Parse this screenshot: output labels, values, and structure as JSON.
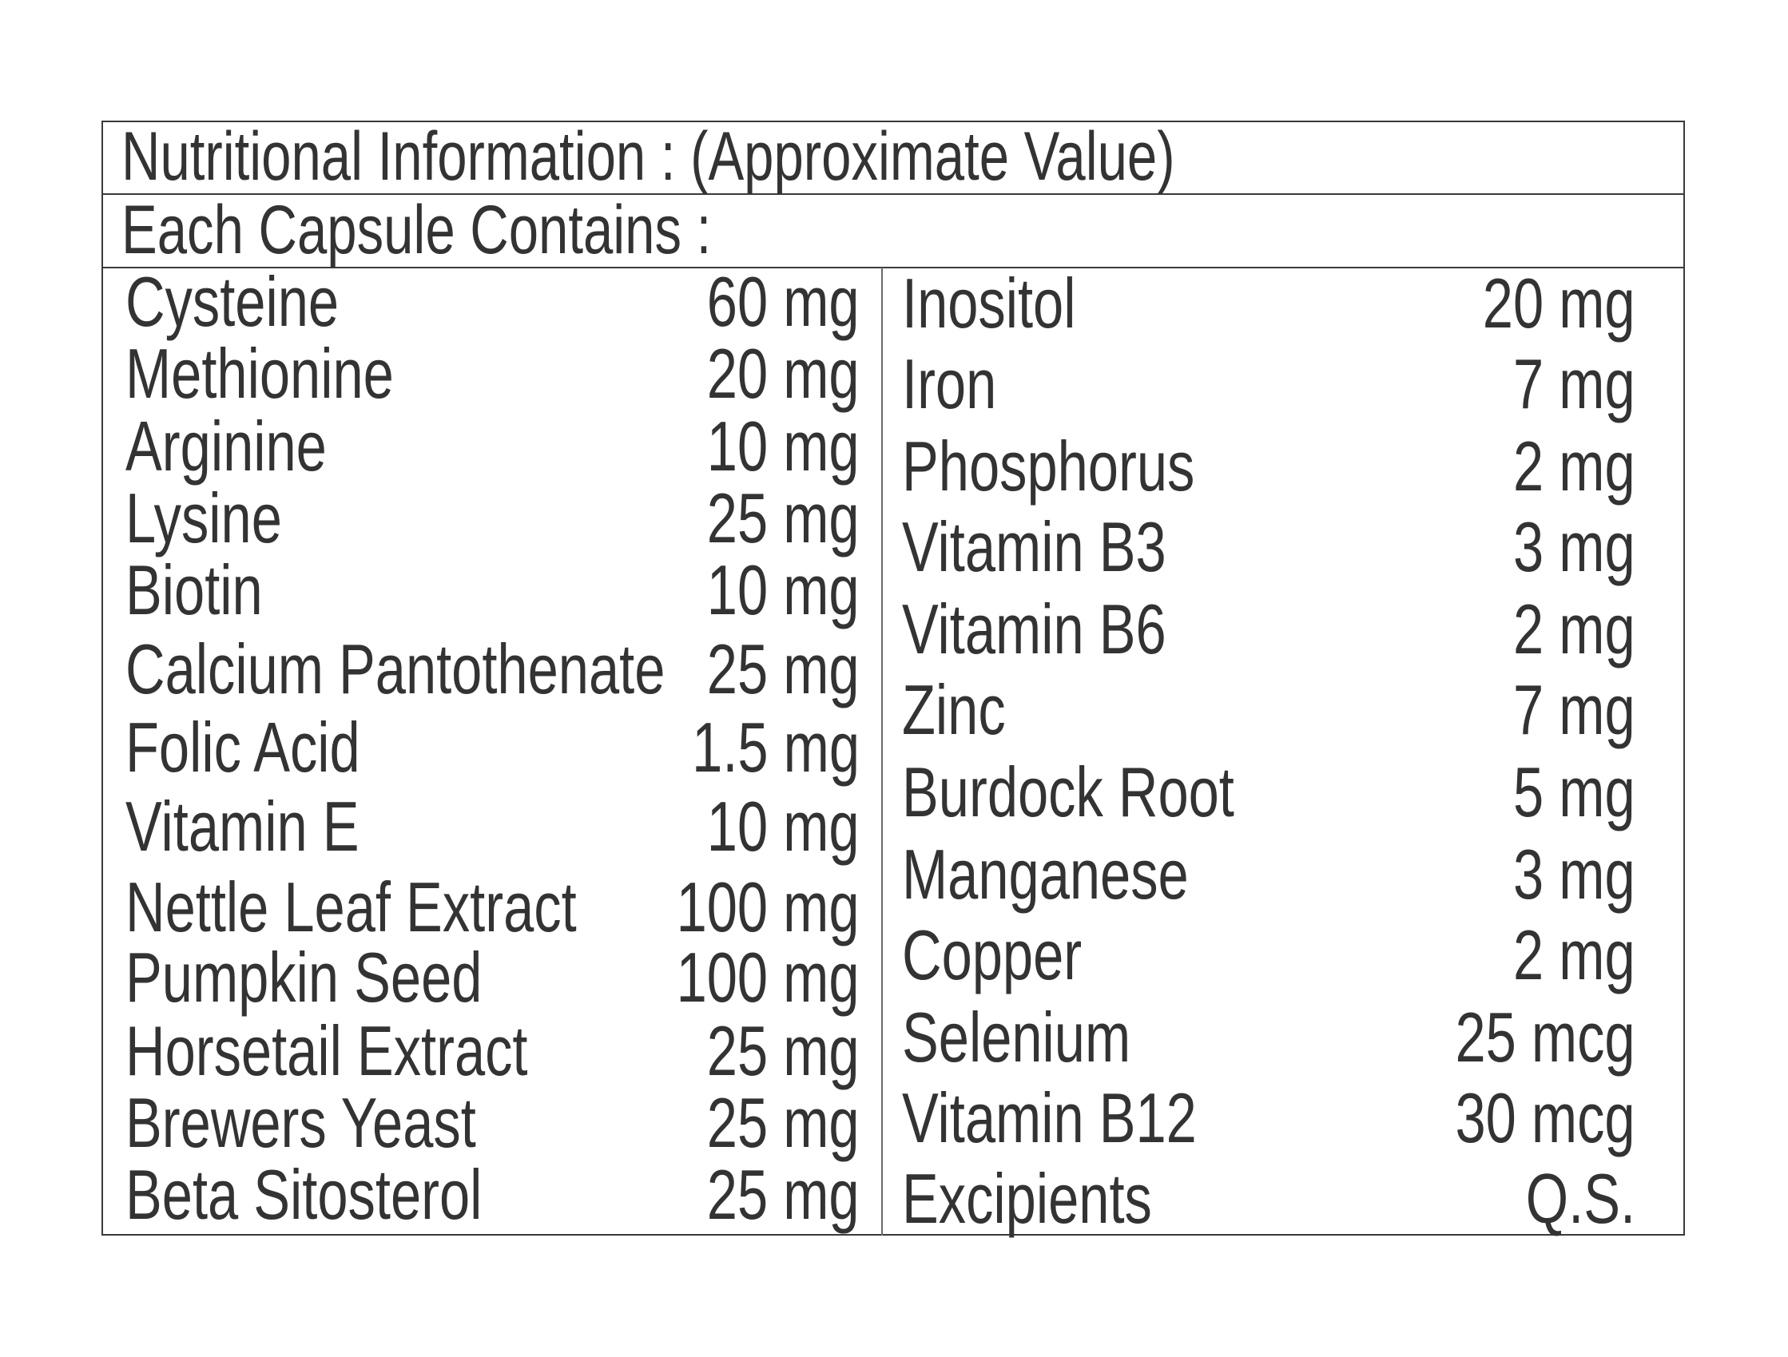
{
  "header": {
    "title": "Nutritional Information : (Approximate Value)",
    "subtitle": "Each Capsule Contains :"
  },
  "colors": {
    "text": "#333333",
    "border": "#3a3a3a",
    "background": "#ffffff"
  },
  "left_column": [
    {
      "name": "Cysteine",
      "amount": "60 mg"
    },
    {
      "name": "Methionine",
      "amount": "20 mg"
    },
    {
      "name": "Arginine",
      "amount": "10 mg"
    },
    {
      "name": "Lysine",
      "amount": "25 mg"
    },
    {
      "name": "Biotin",
      "amount": "10 mg"
    },
    {
      "name": "Calcium Pantothenate",
      "amount": "25 mg"
    },
    {
      "name": "Folic Acid",
      "amount": "1.5 mg"
    },
    {
      "name": "Vitamin E",
      "amount": "10 mg"
    },
    {
      "name": "Nettle Leaf Extract",
      "amount": "100 mg"
    },
    {
      "name": "Pumpkin Seed",
      "amount": "100 mg"
    },
    {
      "name": "Horsetail Extract",
      "amount": "25 mg"
    },
    {
      "name": "Brewers Yeast",
      "amount": "25 mg"
    },
    {
      "name": "Beta Sitosterol",
      "amount": "25 mg"
    }
  ],
  "right_column": [
    {
      "name": "Inositol",
      "amount": "20 mg"
    },
    {
      "name": "Iron",
      "amount": "7 mg"
    },
    {
      "name": "Phosphorus",
      "amount": "2 mg"
    },
    {
      "name": "Vitamin B3",
      "amount": "3 mg"
    },
    {
      "name": "Vitamin B6",
      "amount": "2 mg"
    },
    {
      "name": "Zinc",
      "amount": "7 mg"
    },
    {
      "name": "Burdock Root",
      "amount": "5 mg"
    },
    {
      "name": "Manganese",
      "amount": "3 mg"
    },
    {
      "name": "Copper",
      "amount": "2 mg"
    },
    {
      "name": "Selenium",
      "amount": "25 mcg"
    },
    {
      "name": "Vitamin B12",
      "amount": "30 mcg"
    },
    {
      "name": "Excipients",
      "amount": "Q.S."
    }
  ]
}
